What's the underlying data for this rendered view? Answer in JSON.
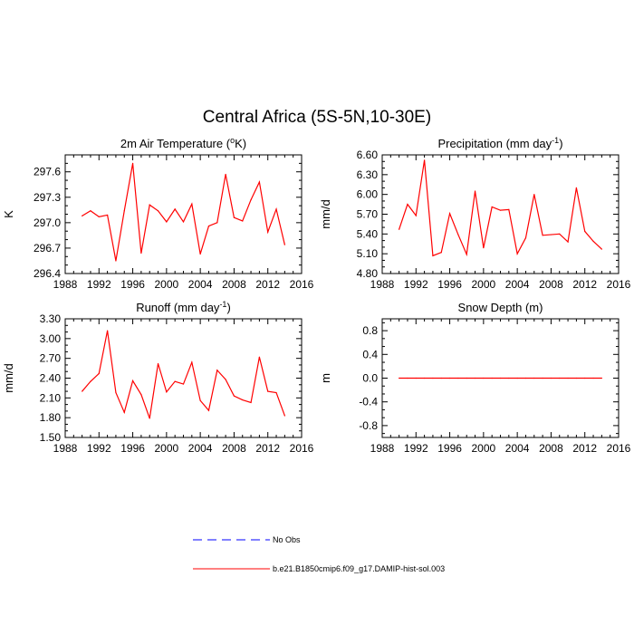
{
  "figure_title": "Central Africa (5S-5N,10-30E)",
  "colors": {
    "model": "#ff0000",
    "obs": "#0000ff",
    "axis": "#000000"
  },
  "legend": [
    {
      "label": "No Obs",
      "color": "#0000ff",
      "style": "dashed"
    },
    {
      "label": "b.e21.B1850cmip6.f09_g17.DAMIP-hist-sol.003",
      "color": "#ff0000",
      "style": "solid"
    }
  ],
  "chart_data": [
    {
      "type": "line",
      "title": "2m Air Temperature (",
      "title_super": "o",
      "title_after": "K)",
      "ylabel": "K",
      "xlim": [
        1988,
        2016
      ],
      "ylim": [
        296.4,
        297.8
      ],
      "xticks": [
        "1988",
        "1992",
        "1996",
        "2000",
        "2004",
        "2008",
        "2012",
        "2016"
      ],
      "yticks": [
        "296.4",
        "296.7",
        "297.0",
        "297.3",
        "297.6"
      ],
      "x": [
        1990,
        1991,
        1992,
        1993,
        1994,
        1995,
        1996,
        1997,
        1998,
        1999,
        2000,
        2001,
        2002,
        2003,
        2004,
        2005,
        2006,
        2007,
        2008,
        2009,
        2010,
        2011,
        2012,
        2013,
        2014
      ],
      "series": [
        {
          "values": [
            297.08,
            297.14,
            297.07,
            297.09,
            296.55,
            297.14,
            297.7,
            296.64,
            297.21,
            297.14,
            297.01,
            297.16,
            297.01,
            297.22,
            296.63,
            296.96,
            297.0,
            297.57,
            297.06,
            297.02,
            297.27,
            297.48,
            296.89,
            297.16,
            296.74
          ]
        }
      ]
    },
    {
      "type": "line",
      "title": "Precipitation (mm day",
      "title_super": "-1",
      "title_after": ")",
      "ylabel": "mm/d",
      "xlim": [
        1988,
        2016
      ],
      "ylim": [
        4.8,
        6.6
      ],
      "xticks": [
        "1988",
        "1992",
        "1996",
        "2000",
        "2004",
        "2008",
        "2012",
        "2016"
      ],
      "yticks": [
        "4.80",
        "5.10",
        "5.40",
        "5.70",
        "6.00",
        "6.30",
        "6.60"
      ],
      "x": [
        1990,
        1991,
        1992,
        1993,
        1994,
        1995,
        1996,
        1997,
        1998,
        1999,
        2000,
        2001,
        2002,
        2003,
        2004,
        2005,
        2006,
        2007,
        2008,
        2009,
        2010,
        2011,
        2012,
        2013,
        2014
      ],
      "series": [
        {
          "values": [
            5.47,
            5.85,
            5.68,
            6.52,
            5.07,
            5.12,
            5.71,
            5.39,
            5.09,
            6.05,
            5.19,
            5.81,
            5.76,
            5.77,
            5.1,
            5.34,
            6.0,
            5.38,
            5.39,
            5.4,
            5.28,
            6.1,
            5.44,
            5.29,
            5.17
          ]
        }
      ]
    },
    {
      "type": "line",
      "title": "Runoff (mm day",
      "title_super": "-1",
      "title_after": ")",
      "ylabel": "mm/d",
      "xlim": [
        1988,
        2016
      ],
      "ylim": [
        1.5,
        3.3
      ],
      "xticks": [
        "1988",
        "1992",
        "1996",
        "2000",
        "2004",
        "2008",
        "2012",
        "2016"
      ],
      "yticks": [
        "1.50",
        "1.80",
        "2.10",
        "2.40",
        "2.70",
        "3.00",
        "3.30"
      ],
      "x": [
        1990,
        1991,
        1992,
        1993,
        1994,
        1995,
        1996,
        1997,
        1998,
        1999,
        2000,
        2001,
        2002,
        2003,
        2004,
        2005,
        2006,
        2007,
        2008,
        2009,
        2010,
        2011,
        2012,
        2013,
        2014
      ],
      "series": [
        {
          "values": [
            2.2,
            2.35,
            2.47,
            3.12,
            2.18,
            1.88,
            2.36,
            2.15,
            1.79,
            2.62,
            2.19,
            2.35,
            2.31,
            2.64,
            2.06,
            1.91,
            2.52,
            2.38,
            2.13,
            2.07,
            2.03,
            2.72,
            2.2,
            2.18,
            1.83
          ]
        }
      ]
    },
    {
      "type": "line",
      "title": "Snow Depth (m)",
      "title_super": "",
      "title_after": "",
      "ylabel": "m",
      "xlim": [
        1988,
        2016
      ],
      "ylim": [
        -1.0,
        1.0
      ],
      "xticks": [
        "1988",
        "1992",
        "1996",
        "2000",
        "2004",
        "2008",
        "2012",
        "2016"
      ],
      "yticks": [
        "-0.8",
        "-0.4",
        "0.0",
        "0.4",
        "0.8"
      ],
      "x": [
        1990,
        1991,
        1992,
        1993,
        1994,
        1995,
        1996,
        1997,
        1998,
        1999,
        2000,
        2001,
        2002,
        2003,
        2004,
        2005,
        2006,
        2007,
        2008,
        2009,
        2010,
        2011,
        2012,
        2013,
        2014
      ],
      "series": [
        {
          "values": [
            0,
            0,
            0,
            0,
            0,
            0,
            0,
            0,
            0,
            0,
            0,
            0,
            0,
            0,
            0,
            0,
            0,
            0,
            0,
            0,
            0,
            0,
            0,
            0,
            0
          ]
        }
      ]
    }
  ]
}
